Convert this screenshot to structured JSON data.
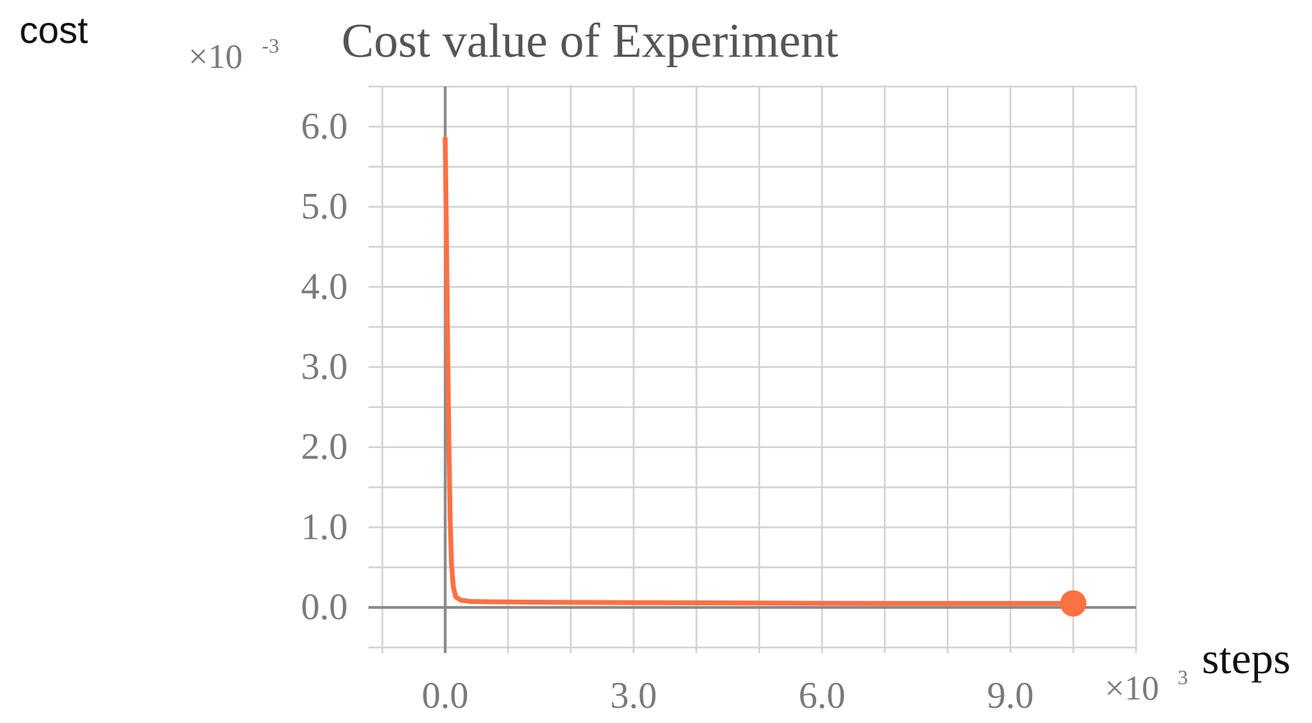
{
  "chart_data": {
    "type": "line",
    "title": "Cost value of Experiment",
    "ylabel": "cost",
    "xlabel": "steps",
    "y_scale_label": "×10",
    "y_scale_exp": "-3",
    "x_scale_label": "×10",
    "x_scale_exp": "3",
    "xlim": [
      -1.0,
      11.0
    ],
    "ylim": [
      -0.5,
      6.5
    ],
    "x_ticks": [
      0,
      3,
      6,
      9
    ],
    "x_tick_labels": [
      "0.0",
      "3.0",
      "6.0",
      "9.0"
    ],
    "y_ticks": [
      0,
      1,
      2,
      3,
      4,
      5,
      6
    ],
    "y_tick_labels": [
      "0.0",
      "1.0",
      "2.0",
      "3.0",
      "4.0",
      "5.0",
      "6.0"
    ],
    "grid": true,
    "series": [
      {
        "color": "#ff7043",
        "x": [
          0.0,
          0.02,
          0.04,
          0.06,
          0.08,
          0.1,
          0.13,
          0.17,
          0.25,
          0.4,
          0.7,
          1.5,
          3.0,
          5.0,
          7.0,
          9.0,
          10.0
        ],
        "y": [
          5.85,
          4.6,
          3.2,
          2.0,
          1.1,
          0.55,
          0.25,
          0.13,
          0.09,
          0.075,
          0.07,
          0.065,
          0.06,
          0.055,
          0.05,
          0.05,
          0.05
        ],
        "end_marker": true
      }
    ]
  }
}
